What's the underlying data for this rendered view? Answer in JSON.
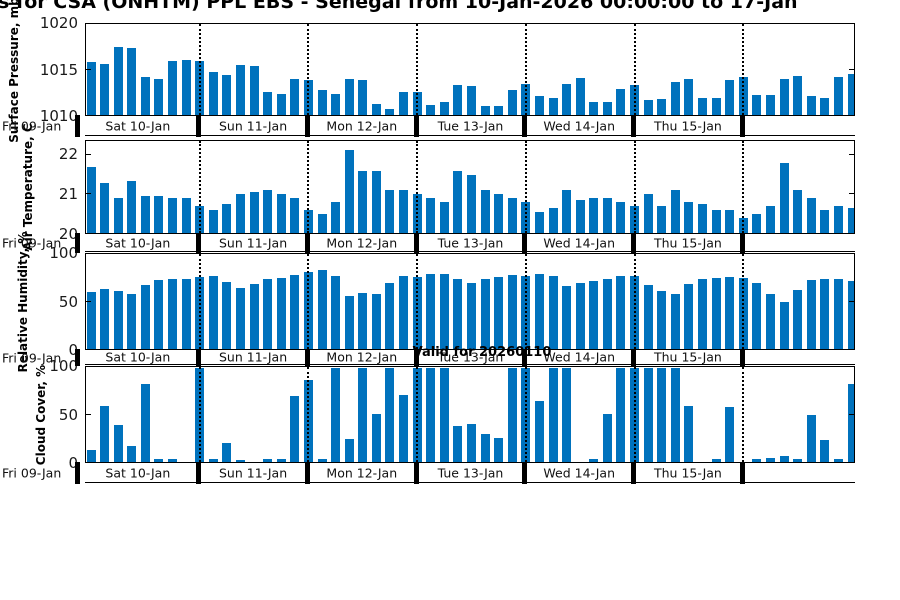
{
  "figure": {
    "title": "s for CSA (ONHTM) PPL EBS  - Senegal from 10-Jan-2026 00:00:00 to 17-Jan",
    "annotation": "Valid for 20260110",
    "bar_color": "#0072BD"
  },
  "x_axis": {
    "left_label": "Fri 09-Jan",
    "day_labels": [
      "Sat 10-Jan",
      "Sun 11-Jan",
      "Mon 12-Jan",
      "Tue 13-Jan",
      "Wed 14-Jan",
      "Thu 15-Jan",
      ""
    ],
    "bars_per_day": 8,
    "points": 57
  },
  "chart_data": [
    {
      "type": "bar",
      "title": "",
      "ylabel": "Surface Pressure, mb",
      "ylim": [
        1010,
        1020
      ],
      "yticks": [
        1020,
        1015,
        1010
      ],
      "values": [
        1015.9,
        1015.7,
        1017.6,
        1017.5,
        1014.2,
        1014.0,
        1016.0,
        1016.1,
        1016.0,
        1014.8,
        1014.4,
        1015.6,
        1015.5,
        1012.6,
        1012.3,
        1014.0,
        1013.9,
        1012.8,
        1012.3,
        1014.0,
        1013.9,
        1011.2,
        1010.7,
        1012.6,
        1012.6,
        1011.1,
        1011.5,
        1013.3,
        1013.2,
        1011.0,
        1011.0,
        1012.8,
        1013.4,
        1012.1,
        1011.9,
        1013.5,
        1014.1,
        1011.5,
        1011.4,
        1012.9,
        1013.3,
        1011.7,
        1011.8,
        1013.7,
        1014.0,
        1011.9,
        1011.9,
        1013.9,
        1014.2,
        1012.2,
        1012.2,
        1014.0,
        1014.3,
        1012.1,
        1011.9,
        1014.2,
        1014.6
      ]
    },
    {
      "type": "bar",
      "title": "",
      "ylabel": "Air Temperature, C",
      "ylim": [
        20,
        22.35
      ],
      "yticks": [
        22,
        21,
        20
      ],
      "values": [
        21.7,
        21.3,
        20.9,
        21.35,
        20.95,
        20.95,
        20.9,
        20.9,
        20.7,
        20.6,
        20.75,
        21.0,
        21.05,
        21.1,
        21.0,
        20.9,
        20.6,
        20.5,
        20.8,
        22.15,
        21.6,
        21.6,
        21.1,
        21.1,
        21.0,
        20.9,
        20.8,
        21.6,
        21.5,
        21.1,
        21.0,
        20.9,
        20.8,
        20.55,
        20.65,
        21.1,
        20.85,
        20.9,
        20.9,
        20.8,
        20.7,
        21.0,
        20.7,
        21.1,
        20.8,
        20.75,
        20.6,
        20.6,
        20.4,
        20.5,
        20.7,
        21.8,
        21.1,
        20.9,
        20.6,
        20.7,
        20.65
      ]
    },
    {
      "type": "bar",
      "title": "",
      "ylabel": "Relative Humidity, %",
      "ylim": [
        0,
        100
      ],
      "yticks": [
        100,
        50,
        0
      ],
      "values": [
        61,
        64,
        62,
        58,
        68,
        73,
        74,
        75,
        77,
        78,
        71,
        65,
        69,
        75,
        76,
        79,
        82,
        84,
        78,
        56,
        60,
        58,
        70,
        78,
        77,
        80,
        80,
        75,
        70,
        75,
        77,
        79,
        78,
        80,
        78,
        67,
        70,
        72,
        74,
        78,
        78,
        68,
        62,
        58,
        69,
        75,
        76,
        77,
        76,
        70,
        59,
        50,
        63,
        73,
        75,
        74,
        72
      ]
    },
    {
      "type": "bar",
      "title": "Valid for 20260110",
      "ylabel": "Cloud Cover, %",
      "ylim": [
        0,
        100
      ],
      "yticks": [
        100,
        50,
        0
      ],
      "values": [
        13,
        60,
        39,
        17,
        83,
        3,
        3,
        0,
        100,
        3,
        20,
        2,
        0,
        3,
        3,
        70,
        87,
        3,
        100,
        25,
        100,
        51,
        100,
        71,
        100,
        100,
        100,
        38,
        40,
        30,
        26,
        100,
        100,
        65,
        100,
        100,
        0,
        3,
        51,
        100,
        100,
        100,
        100,
        100,
        60,
        0,
        3,
        59,
        0,
        3,
        4,
        6,
        3,
        50,
        23,
        3,
        83
      ]
    }
  ]
}
